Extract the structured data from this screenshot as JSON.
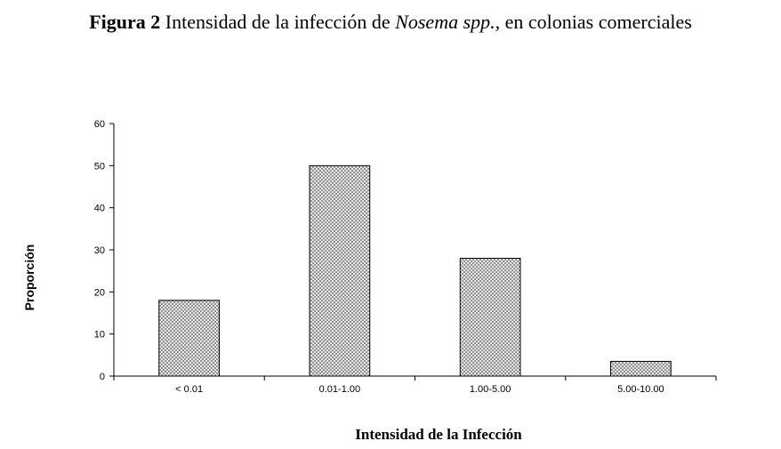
{
  "title": {
    "label": "Figura 2",
    "text_before": "Intensidad de la infección de",
    "italic": "Nosema",
    "text_mid": " spp.,",
    "text_after": " en colonias comerciales"
  },
  "chart_data": {
    "type": "bar",
    "categories": [
      "< 0.01",
      "0.01-1.00",
      "1.00-5.00",
      "5.00-10.00"
    ],
    "values": [
      18,
      50,
      28,
      3.5
    ],
    "xlabel": "Intensidad de la Infección",
    "ylabel": "Proporción",
    "ylim": [
      0,
      60
    ],
    "yticks": [
      0,
      10,
      20,
      30,
      40,
      50,
      60
    ],
    "grid": false,
    "bar_fill": "crosshatch",
    "colors": {
      "bar_stroke": "#000000",
      "hatch": "#7a7a7a"
    }
  }
}
